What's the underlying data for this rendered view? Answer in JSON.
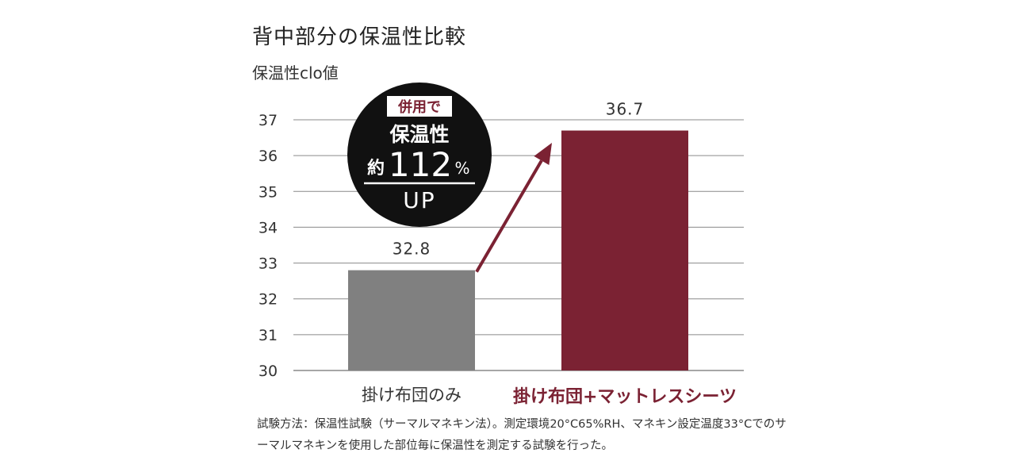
{
  "chart_data": {
    "type": "bar",
    "title": "背中部分の保温性比較",
    "ylabel": "保温性clo値",
    "categories": [
      "掛け布団のみ",
      "掛け布団+マットレスシーツ"
    ],
    "values": [
      32.8,
      36.7
    ],
    "value_labels": [
      "32.8",
      "36.7"
    ],
    "ylim": [
      30,
      37
    ],
    "yticks": [
      "30",
      "31",
      "32",
      "33",
      "34",
      "35",
      "36",
      "37"
    ],
    "grid": true,
    "bar_colors": [
      "#808080",
      "#7b2233"
    ],
    "badge": {
      "tag": "併用で",
      "line1": "保温性",
      "prefix": "約",
      "number": "112",
      "unit": "%",
      "line3": "UP"
    },
    "note": "試験方法：保温性試験（サーマルマネキン法）。測定環境20°C65%RH、マネキン設定温度33°Cでのサーマルマネキンを使用した部位毎に保温性を測定する試験を行った。"
  }
}
